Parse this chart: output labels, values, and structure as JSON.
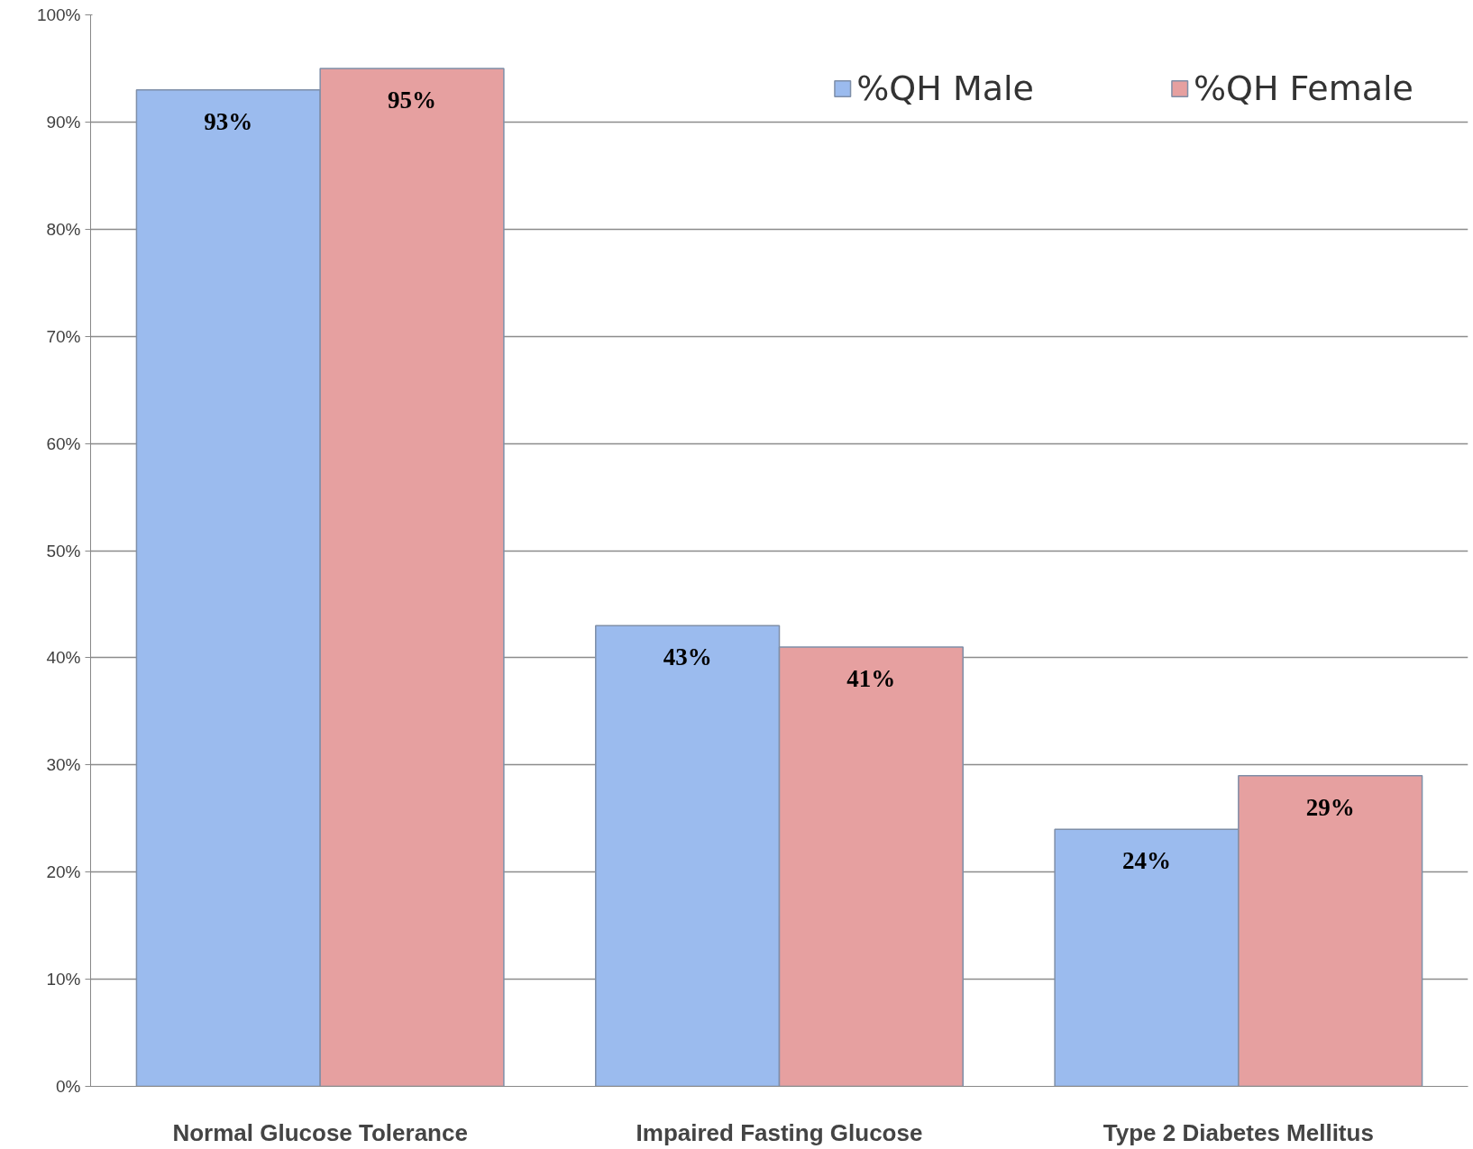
{
  "chart_data": {
    "type": "bar",
    "categories": [
      "Normal Glucose Tolerance",
      "Impaired Fasting Glucose",
      "Type 2 Diabetes Mellitus"
    ],
    "series": [
      {
        "name": "%QH Male",
        "color": "#9bbbee",
        "values": [
          93,
          43,
          24
        ],
        "value_labels": [
          "93%",
          "43%",
          "24%"
        ]
      },
      {
        "name": "%QH Female",
        "color": "#e6a0a0",
        "values": [
          95,
          41,
          29
        ],
        "value_labels": [
          "95%",
          "41%",
          "29%"
        ]
      }
    ],
    "ylim": [
      0,
      100
    ],
    "yticks": [
      {
        "value": 0,
        "label": "0%"
      },
      {
        "value": 10,
        "label": "10%"
      },
      {
        "value": 20,
        "label": "20%"
      },
      {
        "value": 30,
        "label": "30%"
      },
      {
        "value": 40,
        "label": "40%"
      },
      {
        "value": 50,
        "label": "50%"
      },
      {
        "value": 60,
        "label": "60%"
      },
      {
        "value": 70,
        "label": "70%"
      },
      {
        "value": 80,
        "label": "80%"
      },
      {
        "value": 90,
        "label": "90%"
      },
      {
        "value": 100,
        "label": "100%"
      }
    ],
    "grid": "y",
    "legend": "top right"
  }
}
